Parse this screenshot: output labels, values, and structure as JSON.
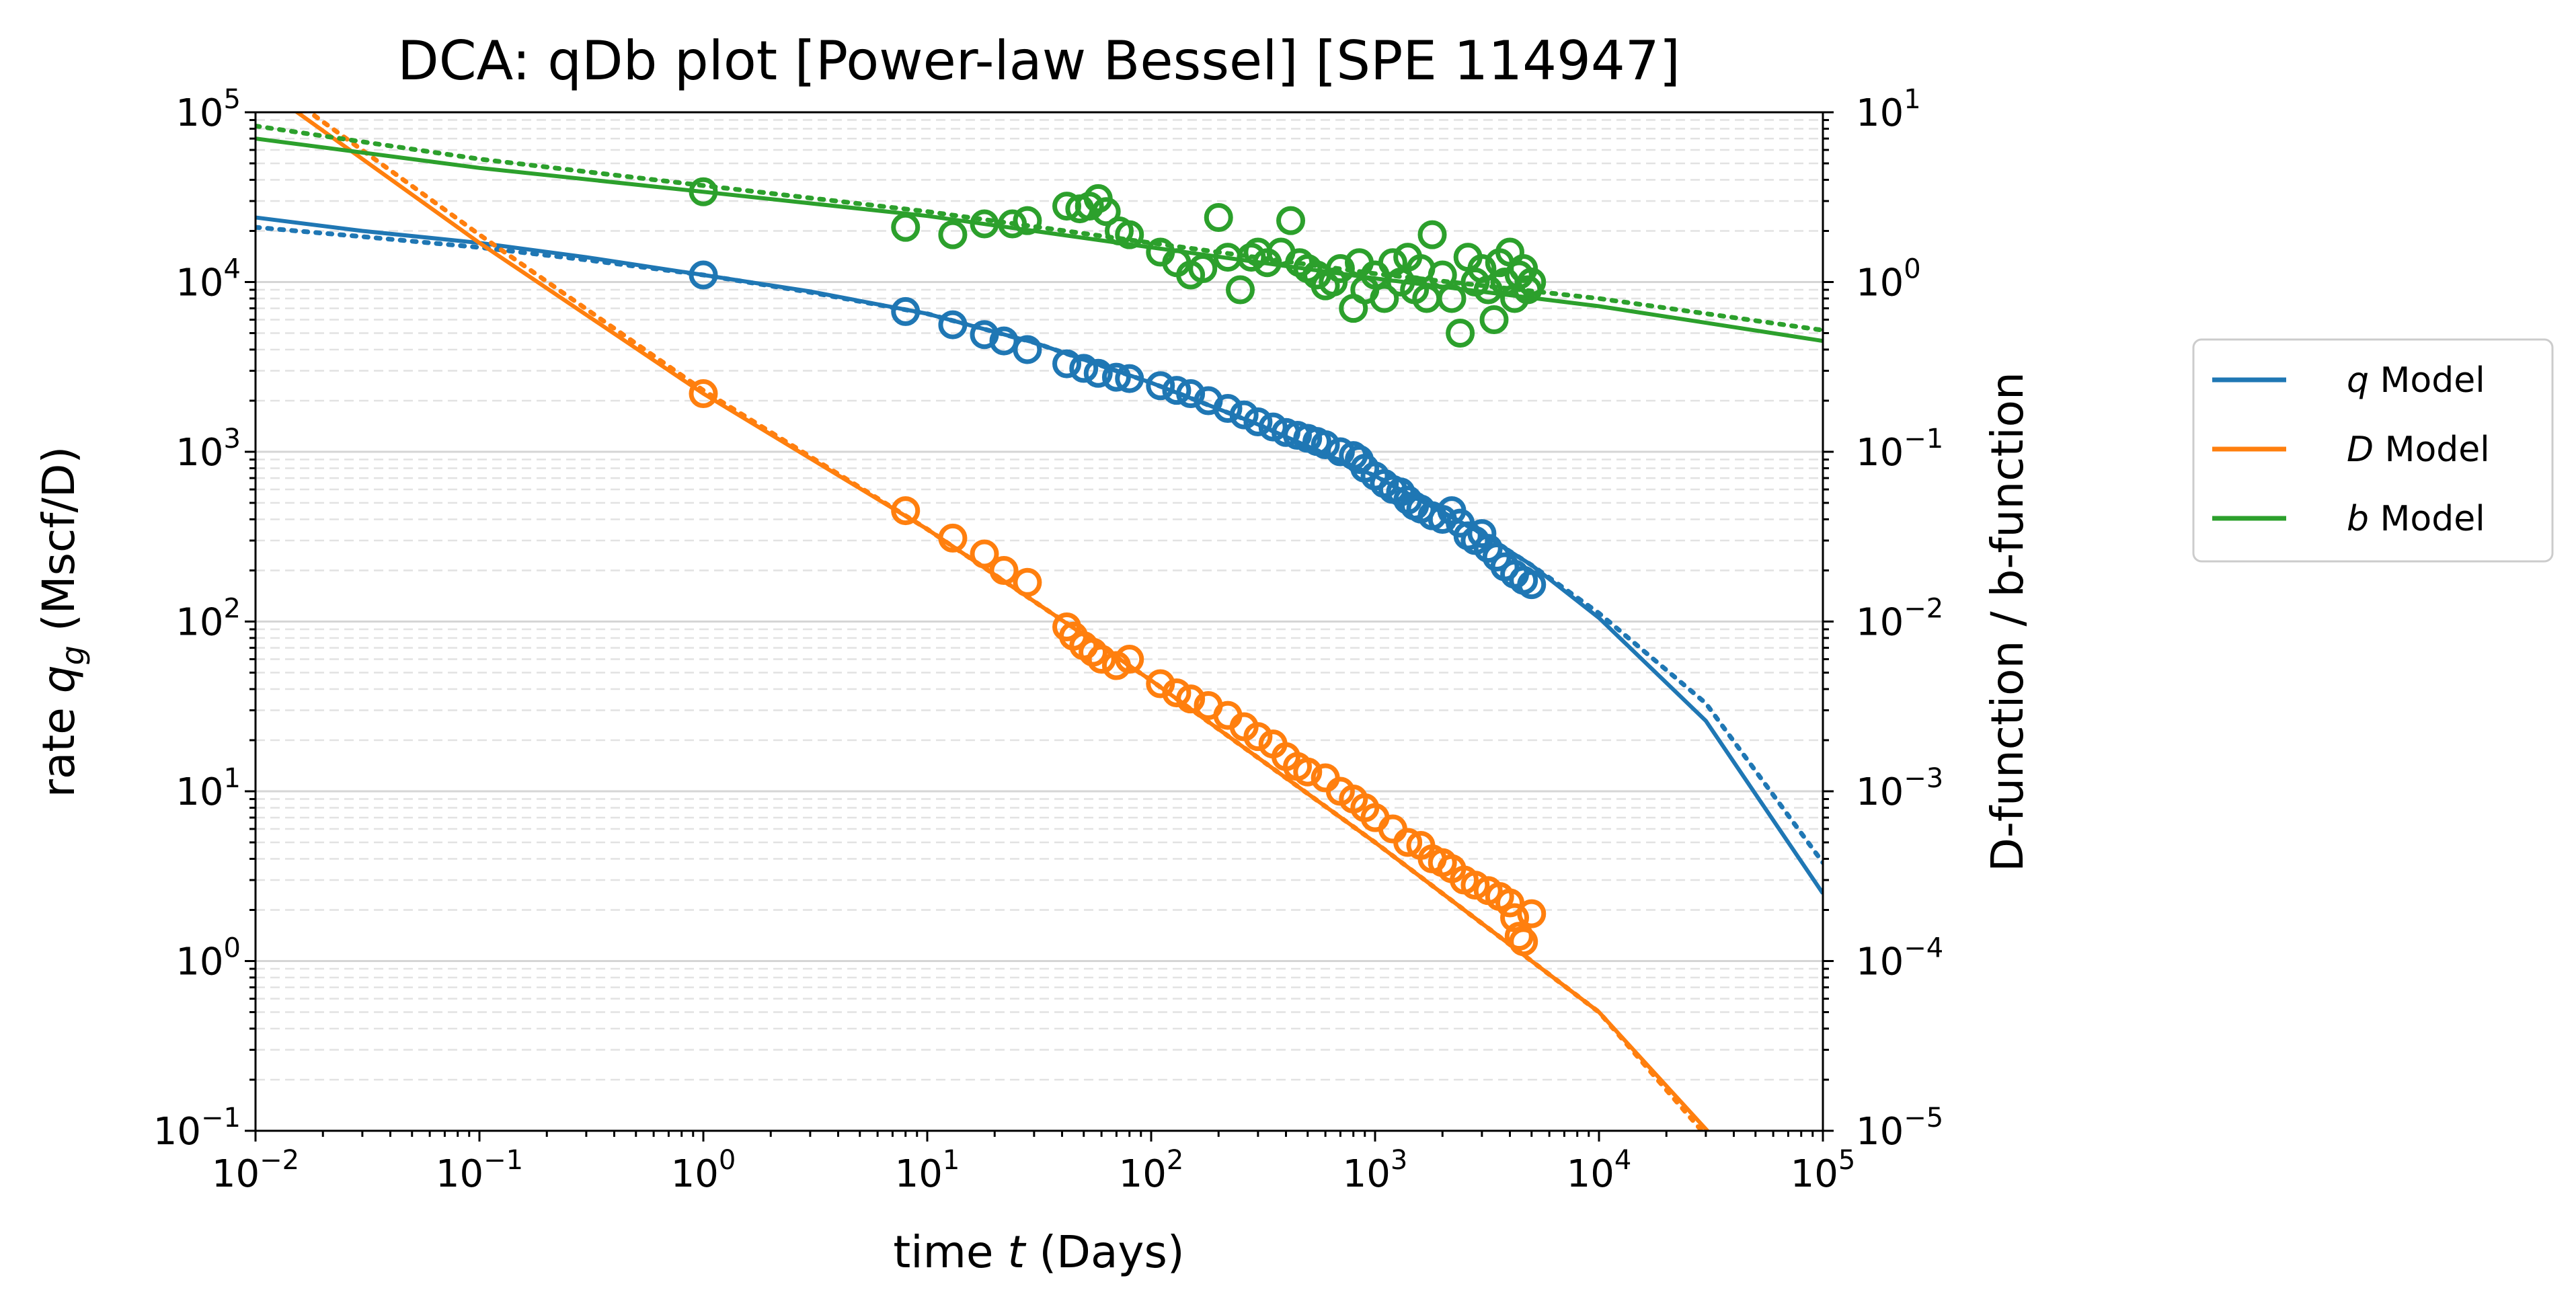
{
  "chart_data": {
    "type": "scatter",
    "title": "DCA: qDb plot  [Power-law Bessel]  [SPE 114947]",
    "xlabel_prefix": "time ",
    "xlabel_var": "t",
    "xlabel_suffix": " (Days)",
    "ylabel_prefix": "rate ",
    "ylabel_var": "q",
    "ylabel_sub": "g",
    "ylabel_suffix": " (Mscf/D)",
    "y2label": "D-function / b-function",
    "xscale": "log",
    "yscale": "log",
    "y2scale": "log",
    "xlim": [
      0.01,
      100000
    ],
    "ylim": [
      0.1,
      100000
    ],
    "y2lim": [
      1e-05,
      10
    ],
    "grid": "y-major solid, y-minor dashed",
    "legend_position": "outside-right",
    "x_ticks": [
      {
        "base": "10",
        "exp": "−2"
      },
      {
        "base": "10",
        "exp": "−1"
      },
      {
        "base": "10",
        "exp": "0"
      },
      {
        "base": "10",
        "exp": "1"
      },
      {
        "base": "10",
        "exp": "2"
      },
      {
        "base": "10",
        "exp": "3"
      },
      {
        "base": "10",
        "exp": "4"
      },
      {
        "base": "10",
        "exp": "5"
      }
    ],
    "y_ticks": [
      {
        "base": "10",
        "exp": "−1"
      },
      {
        "base": "10",
        "exp": "0"
      },
      {
        "base": "10",
        "exp": "1"
      },
      {
        "base": "10",
        "exp": "2"
      },
      {
        "base": "10",
        "exp": "3"
      },
      {
        "base": "10",
        "exp": "4"
      },
      {
        "base": "10",
        "exp": "5"
      }
    ],
    "y2_ticks": [
      {
        "base": "10",
        "exp": "−5"
      },
      {
        "base": "10",
        "exp": "−4"
      },
      {
        "base": "10",
        "exp": "−3"
      },
      {
        "base": "10",
        "exp": "−2"
      },
      {
        "base": "10",
        "exp": "−1"
      },
      {
        "base": "10",
        "exp": "0"
      },
      {
        "base": "10",
        "exp": "1"
      }
    ],
    "series": [
      {
        "var": "q",
        "label": " Model",
        "color": "#1f77b4",
        "axis": "left",
        "model": [
          [
            0.01,
            24000
          ],
          [
            0.03,
            20000
          ],
          [
            0.1,
            17000
          ],
          [
            0.3,
            14000
          ],
          [
            1,
            11000
          ],
          [
            3,
            8800
          ],
          [
            10,
            6500
          ],
          [
            30,
            4400
          ],
          [
            100,
            2550
          ],
          [
            300,
            1450
          ],
          [
            1000,
            720
          ],
          [
            3000,
            330
          ],
          [
            5000,
            215
          ],
          [
            10000,
            105
          ],
          [
            30000,
            26
          ],
          [
            100000,
            2.5
          ]
        ],
        "model_dotted": [
          [
            0.01,
            21000
          ],
          [
            0.03,
            18500
          ],
          [
            0.1,
            16000
          ],
          [
            0.3,
            13500
          ],
          [
            1,
            11000
          ],
          [
            3,
            8700
          ],
          [
            10,
            6500
          ],
          [
            30,
            4400
          ],
          [
            100,
            2550
          ],
          [
            300,
            1450
          ],
          [
            1000,
            720
          ],
          [
            3000,
            330
          ],
          [
            5000,
            215
          ],
          [
            10000,
            112
          ],
          [
            30000,
            33
          ],
          [
            100000,
            3.8
          ]
        ],
        "points": [
          [
            1,
            11000
          ],
          [
            8,
            6700
          ],
          [
            13,
            5600
          ],
          [
            18,
            4900
          ],
          [
            22,
            4500
          ],
          [
            28,
            4000
          ],
          [
            42,
            3300
          ],
          [
            50,
            3100
          ],
          [
            58,
            2900
          ],
          [
            70,
            2750
          ],
          [
            80,
            2700
          ],
          [
            110,
            2450
          ],
          [
            130,
            2300
          ],
          [
            150,
            2200
          ],
          [
            180,
            2000
          ],
          [
            220,
            1800
          ],
          [
            260,
            1650
          ],
          [
            300,
            1500
          ],
          [
            350,
            1400
          ],
          [
            400,
            1300
          ],
          [
            450,
            1250
          ],
          [
            500,
            1200
          ],
          [
            550,
            1150
          ],
          [
            600,
            1100
          ],
          [
            700,
            1000
          ],
          [
            800,
            950
          ],
          [
            850,
            900
          ],
          [
            900,
            800
          ],
          [
            1000,
            720
          ],
          [
            1100,
            650
          ],
          [
            1200,
            600
          ],
          [
            1300,
            580
          ],
          [
            1400,
            520
          ],
          [
            1500,
            480
          ],
          [
            1600,
            460
          ],
          [
            1800,
            420
          ],
          [
            2000,
            400
          ],
          [
            2200,
            450
          ],
          [
            2400,
            380
          ],
          [
            2600,
            320
          ],
          [
            2800,
            300
          ],
          [
            3000,
            330
          ],
          [
            3200,
            270
          ],
          [
            3500,
            240
          ],
          [
            3800,
            210
          ],
          [
            4200,
            190
          ],
          [
            4600,
            175
          ],
          [
            5000,
            165
          ]
        ]
      },
      {
        "var": "D",
        "label": " Model",
        "color": "#ff7f0e",
        "axis": "right",
        "model": [
          [
            0.01,
            15
          ],
          [
            0.1,
            1.7
          ],
          [
            1,
            0.22
          ],
          [
            10,
            0.035
          ],
          [
            100,
            0.0045
          ],
          [
            1000,
            0.0005
          ],
          [
            10000,
            5e-05
          ],
          [
            100000,
            1.8e-06
          ]
        ],
        "model_dotted": [
          [
            0.01,
            17
          ],
          [
            0.1,
            1.9
          ],
          [
            1,
            0.23
          ],
          [
            10,
            0.035
          ],
          [
            100,
            0.0045
          ],
          [
            1000,
            0.0005
          ],
          [
            10000,
            5e-05
          ],
          [
            100000,
            1.5e-06
          ]
        ],
        "points": [
          [
            1,
            0.22
          ],
          [
            8,
            0.045
          ],
          [
            13,
            0.031
          ],
          [
            18,
            0.025
          ],
          [
            22,
            0.02
          ],
          [
            28,
            0.017
          ],
          [
            42,
            0.0093
          ],
          [
            45,
            0.0082
          ],
          [
            50,
            0.0072
          ],
          [
            55,
            0.0066
          ],
          [
            60,
            0.006
          ],
          [
            70,
            0.0055
          ],
          [
            80,
            0.006
          ],
          [
            110,
            0.0043
          ],
          [
            130,
            0.0038
          ],
          [
            150,
            0.0035
          ],
          [
            180,
            0.0032
          ],
          [
            220,
            0.0028
          ],
          [
            260,
            0.0024
          ],
          [
            300,
            0.0021
          ],
          [
            350,
            0.0019
          ],
          [
            400,
            0.0016
          ],
          [
            450,
            0.0014
          ],
          [
            500,
            0.0013
          ],
          [
            600,
            0.0012
          ],
          [
            700,
            0.001
          ],
          [
            800,
            0.0009
          ],
          [
            900,
            0.0008
          ],
          [
            1000,
            0.0007
          ],
          [
            1200,
            0.0006
          ],
          [
            1400,
            0.0005
          ],
          [
            1600,
            0.00048
          ],
          [
            1800,
            0.0004
          ],
          [
            2000,
            0.00038
          ],
          [
            2200,
            0.00035
          ],
          [
            2500,
            0.0003
          ],
          [
            2800,
            0.00028
          ],
          [
            3200,
            0.00026
          ],
          [
            3600,
            0.00024
          ],
          [
            4000,
            0.00022
          ],
          [
            4200,
            0.00018
          ],
          [
            4400,
            0.00014
          ],
          [
            4600,
            0.00013
          ],
          [
            5000,
            0.00019
          ]
        ]
      },
      {
        "var": "b",
        "label": " Model",
        "color": "#2ca02c",
        "axis": "right",
        "model": [
          [
            0.01,
            7
          ],
          [
            0.1,
            4.7
          ],
          [
            1,
            3.4
          ],
          [
            10,
            2.45
          ],
          [
            100,
            1.6
          ],
          [
            1000,
            1.05
          ],
          [
            10000,
            0.72
          ],
          [
            100000,
            0.45
          ]
        ],
        "model_dotted": [
          [
            0.01,
            8.3
          ],
          [
            0.1,
            5.3
          ],
          [
            1,
            3.7
          ],
          [
            10,
            2.6
          ],
          [
            100,
            1.7
          ],
          [
            1000,
            1.12
          ],
          [
            10000,
            0.8
          ],
          [
            100000,
            0.52
          ]
        ],
        "points": [
          [
            1,
            3.4
          ],
          [
            8,
            2.1
          ],
          [
            13,
            1.9
          ],
          [
            18,
            2.2
          ],
          [
            24,
            2.2
          ],
          [
            28,
            2.3
          ],
          [
            42,
            2.8
          ],
          [
            48,
            2.7
          ],
          [
            53,
            2.8
          ],
          [
            58,
            3.1
          ],
          [
            63,
            2.6
          ],
          [
            72,
            2.0
          ],
          [
            80,
            1.9
          ],
          [
            110,
            1.5
          ],
          [
            130,
            1.3
          ],
          [
            150,
            1.1
          ],
          [
            170,
            1.2
          ],
          [
            200,
            2.4
          ],
          [
            220,
            1.4
          ],
          [
            250,
            0.9
          ],
          [
            280,
            1.4
          ],
          [
            300,
            1.5
          ],
          [
            330,
            1.3
          ],
          [
            380,
            1.5
          ],
          [
            420,
            2.3
          ],
          [
            460,
            1.3
          ],
          [
            500,
            1.2
          ],
          [
            550,
            1.1
          ],
          [
            600,
            0.95
          ],
          [
            650,
            1.0
          ],
          [
            700,
            1.2
          ],
          [
            800,
            0.7
          ],
          [
            850,
            1.3
          ],
          [
            900,
            0.9
          ],
          [
            1000,
            1.1
          ],
          [
            1100,
            0.8
          ],
          [
            1200,
            1.3
          ],
          [
            1300,
            1.0
          ],
          [
            1400,
            1.4
          ],
          [
            1500,
            0.9
          ],
          [
            1600,
            1.2
          ],
          [
            1700,
            0.8
          ],
          [
            1800,
            1.9
          ],
          [
            2000,
            1.1
          ],
          [
            2200,
            0.8
          ],
          [
            2400,
            0.5
          ],
          [
            2600,
            1.4
          ],
          [
            2800,
            1.0
          ],
          [
            3000,
            1.2
          ],
          [
            3200,
            0.9
          ],
          [
            3400,
            0.6
          ],
          [
            3600,
            1.3
          ],
          [
            3800,
            1.0
          ],
          [
            4000,
            1.5
          ],
          [
            4200,
            0.8
          ],
          [
            4400,
            1.1
          ],
          [
            4600,
            1.2
          ],
          [
            4800,
            0.9
          ],
          [
            5000,
            1.0
          ]
        ]
      }
    ]
  }
}
